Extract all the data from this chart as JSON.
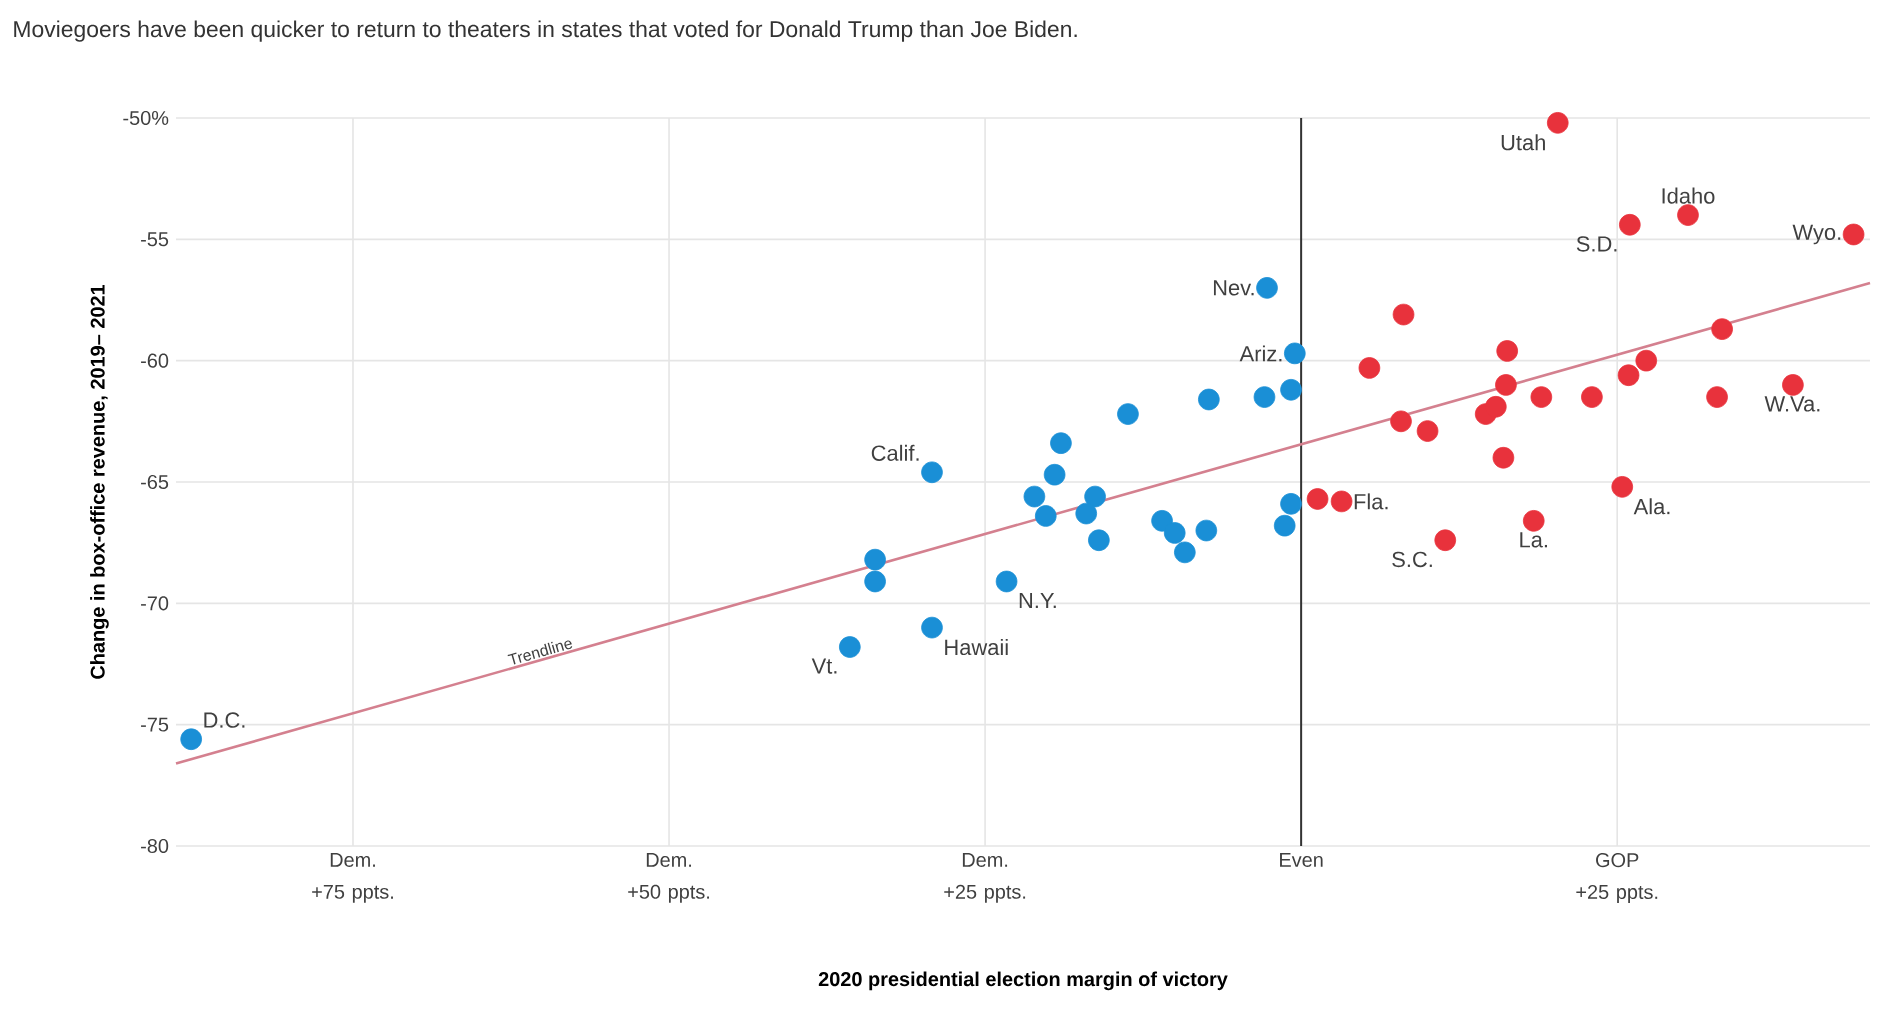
{
  "chart_data": {
    "type": "scatter",
    "title": "Moviegoers have been quicker to return to theaters in states that voted for Donald Trump than Joe Biden.",
    "xlabel": "2020 presidential election margin of victory",
    "ylabel": "Change in box-office revenue, 2019– 2021",
    "xlim": [
      -89,
      45
    ],
    "ylim": [
      -80,
      -50
    ],
    "xticks": [
      {
        "value": -75,
        "label": "Dem. +75 ppts."
      },
      {
        "value": -50,
        "label": "Dem. +50 ppts."
      },
      {
        "value": -25,
        "label": "Dem. +25 ppts."
      },
      {
        "value": 0,
        "label": "Even"
      },
      {
        "value": 25,
        "label": "GOP +25 ppts."
      }
    ],
    "yticks": [
      -80,
      -75,
      -70,
      -65,
      -60,
      -55,
      {
        "value": -50,
        "label": "-50%"
      }
    ],
    "grid": true,
    "marker": "circle",
    "series": [
      {
        "color": "#1a8fd6",
        "x": [
          -87.8,
          -2.7,
          -0.5,
          -0.8,
          -2.9,
          -7.3,
          -13.7,
          -19.0,
          -19.5,
          -29.2,
          -21.1,
          -20.2,
          -16.3,
          -17.0,
          -16.0,
          -11.0,
          -10.0,
          -9.2,
          -7.5,
          -0.8,
          -1.3,
          -33.7,
          -33.7,
          -23.3,
          -29.2,
          -35.7
        ],
        "values": [
          -75.6,
          -57.0,
          -59.7,
          -61.2,
          -61.5,
          -61.6,
          -62.2,
          -63.4,
          -64.7,
          -64.6,
          -65.6,
          -66.4,
          -65.6,
          -66.3,
          -67.4,
          -66.6,
          -67.1,
          -67.9,
          -67.0,
          -65.9,
          -66.8,
          -68.2,
          -69.1,
          -69.1,
          -71.0,
          -71.8
        ]
      },
      {
        "color": "#e8323c",
        "x": [
          20.3,
          30.6,
          26.0,
          43.7,
          8.1,
          33.3,
          5.4,
          16.3,
          16.2,
          27.3,
          25.9,
          19.0,
          23.0,
          32.9,
          38.9,
          7.9,
          10.0,
          14.6,
          15.4,
          16.0,
          3.2,
          1.3,
          25.4,
          18.4,
          11.4
        ],
        "values": [
          -50.2,
          -54.0,
          -54.4,
          -54.8,
          -58.1,
          -58.7,
          -60.3,
          -59.6,
          -61.0,
          -60.0,
          -60.6,
          -61.5,
          -61.5,
          -61.5,
          -61.0,
          -62.5,
          -62.9,
          -62.2,
          -61.9,
          -64.0,
          -65.8,
          -65.7,
          -65.2,
          -66.6,
          -67.4
        ]
      },
      {
        "type": "line",
        "marker": "none",
        "color": "#d4808f",
        "x": [
          -89,
          45
        ],
        "values": [
          -76.6,
          -56.8
        ]
      }
    ],
    "ref_lines": [
      {
        "axis": "x",
        "value": 0,
        "color": "#333333"
      }
    ],
    "annotations": [
      {
        "text": "Utah",
        "x": 20.3,
        "y": -50.2
      },
      {
        "text": "Idaho",
        "x": 30.6,
        "y": -54.0
      },
      {
        "text": "S.D.",
        "x": 26.0,
        "y": -54.4
      },
      {
        "text": "Wyo.",
        "x": 43.7,
        "y": -54.8
      },
      {
        "text": "W.Va.",
        "x": 38.9,
        "y": -61.0
      },
      {
        "text": "Ala.",
        "x": 25.4,
        "y": -65.2
      },
      {
        "text": "La.",
        "x": 18.4,
        "y": -66.6
      },
      {
        "text": "S.C.",
        "x": 11.4,
        "y": -67.4
      },
      {
        "text": "Fla.",
        "x": 3.2,
        "y": -65.8
      },
      {
        "text": "Nev.",
        "x": -2.7,
        "y": -57.0
      },
      {
        "text": "Ariz.",
        "x": -0.5,
        "y": -59.7
      },
      {
        "text": "Calif.",
        "x": -29.2,
        "y": -64.6
      },
      {
        "text": "N.Y.",
        "x": -23.3,
        "y": -69.1
      },
      {
        "text": "Hawaii",
        "x": -29.2,
        "y": -71.0
      },
      {
        "text": "Vt.",
        "x": -35.7,
        "y": -71.8
      },
      {
        "text": "D.C.",
        "x": -87.8,
        "y": -75.6
      },
      {
        "text": "Trendline",
        "x": -60,
        "y": -72.3
      }
    ]
  }
}
